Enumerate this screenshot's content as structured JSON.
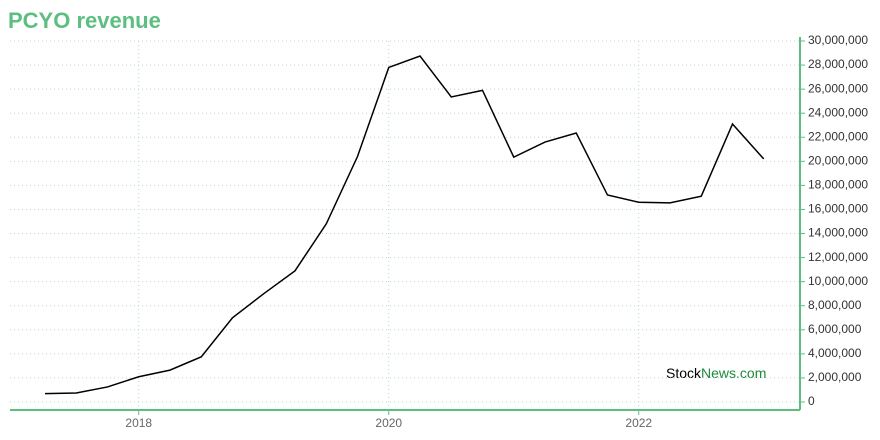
{
  "chart_data": {
    "type": "line",
    "title": "PCYO revenue",
    "x": [
      2017.25,
      2017.5,
      2017.75,
      2018.0,
      2018.25,
      2018.5,
      2018.75,
      2019.0,
      2019.25,
      2019.5,
      2019.75,
      2020.0,
      2020.25,
      2020.5,
      2020.75,
      2021.0,
      2021.25,
      2021.5,
      2021.75,
      2022.0,
      2022.25,
      2022.5,
      2022.75,
      2023.0
    ],
    "series": [
      {
        "name": "PCYO revenue",
        "color": "#000000",
        "values": [
          700000,
          750000,
          1250000,
          2100000,
          2650000,
          3750000,
          7000000,
          9000000,
          10900000,
          14800000,
          20400000,
          27800000,
          28750000,
          25350000,
          25900000,
          20350000,
          21600000,
          22350000,
          17200000,
          16600000,
          16550000,
          17100000,
          23100000,
          20200000
        ]
      }
    ],
    "xlim": [
      2016.97,
      2023.29
    ],
    "xticks": [
      2018,
      2020,
      2022
    ],
    "ylim": [
      -665000,
      30000000
    ],
    "yticks": [
      {
        "value": 0,
        "label": "0"
      },
      {
        "value": 2000000,
        "label": "2,000,000"
      },
      {
        "value": 4000000,
        "label": "4,000,000"
      },
      {
        "value": 6000000,
        "label": "6,000,000"
      },
      {
        "value": 8000000,
        "label": "8,000,000"
      },
      {
        "value": 10000000,
        "label": "10,000,000"
      },
      {
        "value": 12000000,
        "label": "12,000,000"
      },
      {
        "value": 14000000,
        "label": "14,000,000"
      },
      {
        "value": 16000000,
        "label": "16,000,000"
      },
      {
        "value": 18000000,
        "label": "18,000,000"
      },
      {
        "value": 20000000,
        "label": "20,000,000"
      },
      {
        "value": 22000000,
        "label": "22,000,000"
      },
      {
        "value": 24000000,
        "label": "24,000,000"
      },
      {
        "value": 26000000,
        "label": "26,000,000"
      },
      {
        "value": 28000000,
        "label": "28,000,000"
      },
      {
        "value": 30000000,
        "label": "30,000,000"
      }
    ],
    "grid": true,
    "axis_color": "#5cbf80",
    "watermark": {
      "first": "Stock",
      "second": "News.com"
    }
  }
}
